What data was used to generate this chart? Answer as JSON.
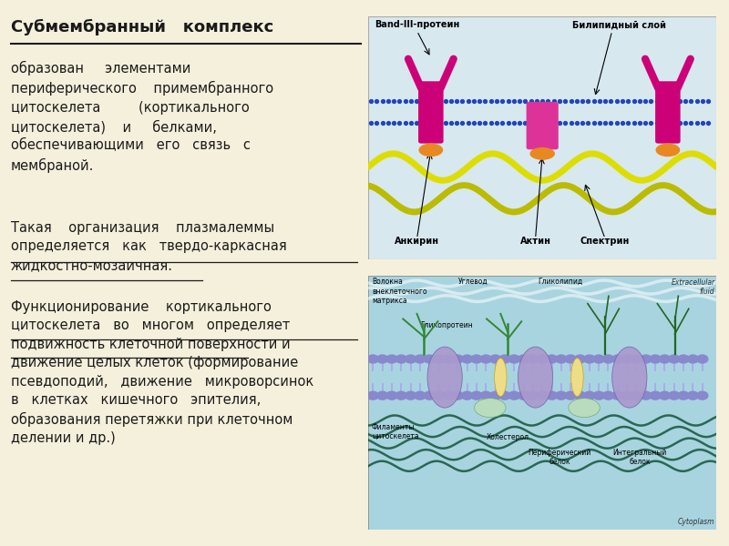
{
  "bg_color": "#f5f0dc",
  "text_color": "#1a1a1a",
  "title_text": "Субмембранный   комплекс",
  "para1": "образован     элементами\nпериферического    примембранного\nцитоскелета         (кортикального\nцитоскелета)    и     белками,\nобеспечивающими   его   связь   с\nмембраной.",
  "para2_normal": "Такая    организация    плазмалеммы\nопределяется   как   ",
  "para2_underline": "твердо-каркасная\nжидкостно-мозаичная.",
  "para3_line1": "Функционирование    кортикального",
  "para3_line2": "цитоскелета   во   многом   определяет",
  "para3_ul1": "подвижность клеточной поверхности и",
  "para3_ul2": "движение целых клеток ",
  "para3_rest": "(формирование\nпсевдоподий,   движение   микроворсинок\nв   клетках   кишечного   эпителия,\nобразования перетяжки при клеточном\nделении и др.)",
  "body_fontsize": 10.5,
  "title_fontsize": 13
}
